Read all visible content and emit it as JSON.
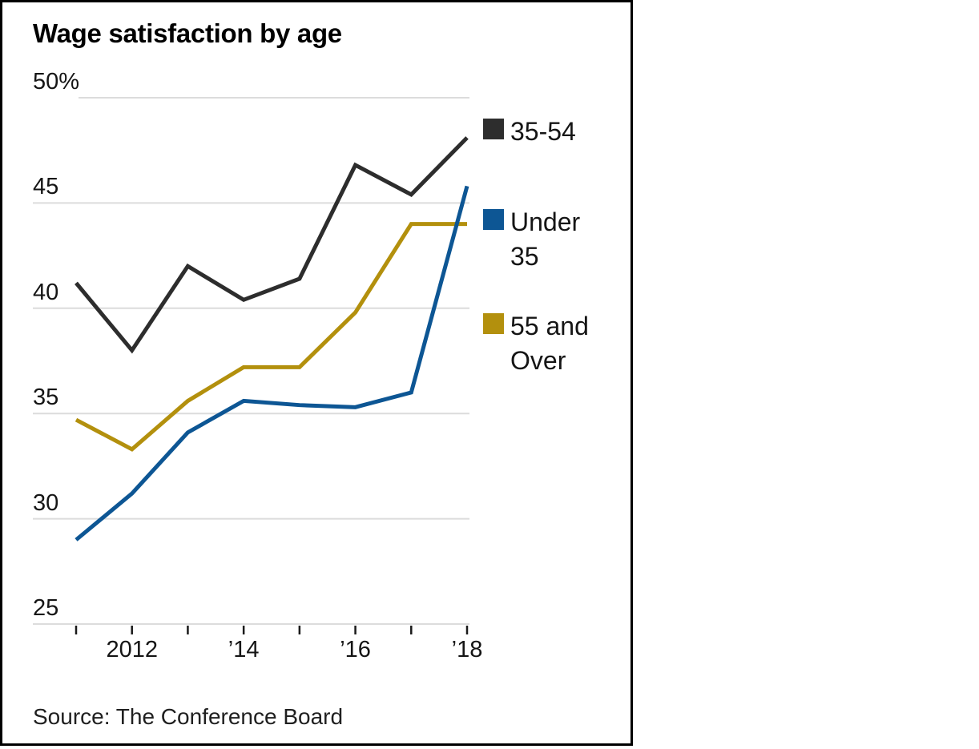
{
  "card": {
    "title": "Wage satisfaction by age",
    "source": "Source: The Conference Board",
    "background": "#ffffff",
    "border_color": "#000000"
  },
  "chart_data": {
    "type": "line",
    "title": "Wage satisfaction by age",
    "x": [
      2011,
      2012,
      2013,
      2014,
      2015,
      2016,
      2017,
      2018
    ],
    "xlim": [
      2011,
      2018
    ],
    "ylim": [
      25,
      50
    ],
    "y_ticks": [
      25,
      30,
      35,
      40,
      45,
      50
    ],
    "y_tick_labels": [
      "25",
      "30",
      "35",
      "40",
      "45",
      "50%"
    ],
    "x_tick_years": [
      2012,
      2014,
      2016,
      2018
    ],
    "x_tick_labels": [
      "2012",
      "’14",
      "’16",
      "’18"
    ],
    "grid": "horizontal",
    "grid_color": "#dcdcdc",
    "tick_color": "#1a1a1a",
    "legend_position": "right",
    "series": [
      {
        "name": "35-54",
        "color": "#2d2d2d",
        "values": [
          41.2,
          38.0,
          42.0,
          40.4,
          41.4,
          46.8,
          45.4,
          48.1
        ]
      },
      {
        "name": "Under 35",
        "color": "#0d5694",
        "values": [
          29.0,
          31.2,
          34.1,
          35.6,
          35.4,
          35.3,
          36.0,
          45.8
        ]
      },
      {
        "name": "55 and Over",
        "color": "#b3900d",
        "values": [
          34.7,
          33.3,
          35.6,
          37.2,
          37.2,
          39.8,
          44.0,
          44.0
        ]
      }
    ],
    "source": "Source: The Conference Board"
  }
}
